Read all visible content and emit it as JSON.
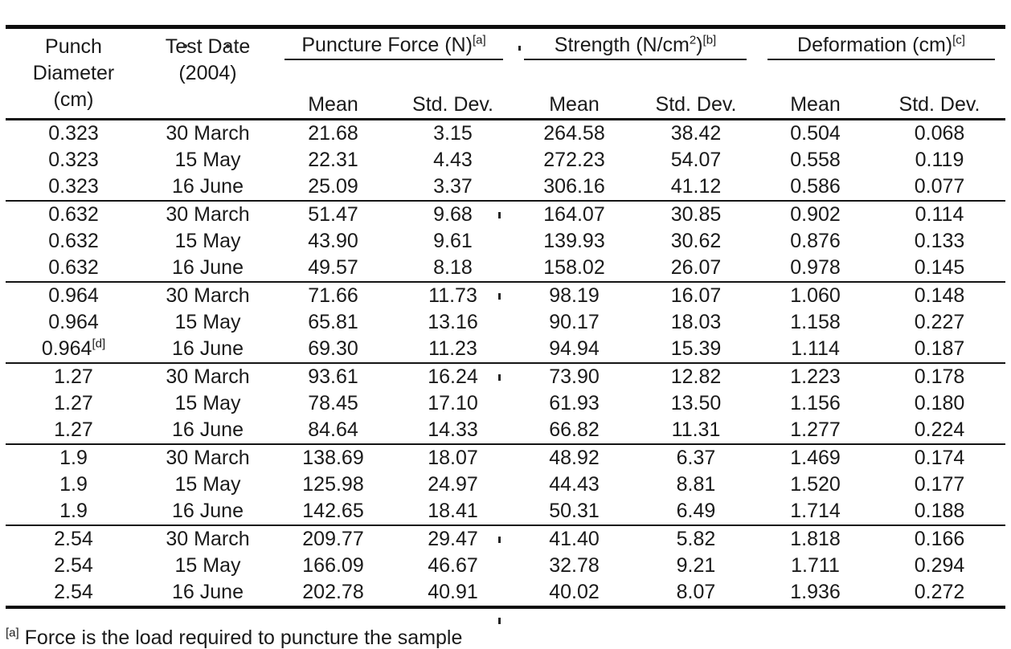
{
  "page": {
    "background": "#ffffff",
    "text_color": "#1a1a1a",
    "rule_color": "#0e0e0e"
  },
  "table": {
    "header": {
      "punch_diameter": "Punch\nDiameter\n(cm)",
      "test_date": "Test Date\n(2004)",
      "groups": [
        {
          "label": "Puncture Force (N)",
          "sup": "[a]"
        },
        {
          "label": "Strength (N/cm",
          "sup2": "2",
          "tail": ")",
          "sup": "[b]"
        },
        {
          "label": "Deformation (cm)",
          "sup": "[c]"
        }
      ],
      "subheaders": {
        "mean": "Mean",
        "std": "Std. Dev."
      }
    },
    "body": [
      {
        "rows": [
          [
            "0.323",
            "30 March",
            "21.68",
            "3.15",
            "264.58",
            "38.42",
            "0.504",
            "0.068"
          ],
          [
            "0.323",
            "15 May",
            "22.31",
            "4.43",
            "272.23",
            "54.07",
            "0.558",
            "0.119"
          ],
          [
            "0.323",
            "16 June",
            "25.09",
            "3.37",
            "306.16",
            "41.12",
            "0.586",
            "0.077"
          ]
        ]
      },
      {
        "rows": [
          [
            "0.632",
            "30 March",
            "51.47",
            "9.68",
            "164.07",
            "30.85",
            "0.902",
            "0.114"
          ],
          [
            "0.632",
            "15 May",
            "43.90",
            "9.61",
            "139.93",
            "30.62",
            "0.876",
            "0.133"
          ],
          [
            "0.632",
            "16 June",
            "49.57",
            "8.18",
            "158.02",
            "26.07",
            "0.978",
            "0.145"
          ]
        ]
      },
      {
        "rows": [
          [
            "0.964",
            "30 March",
            "71.66",
            "11.73",
            "98.19",
            "16.07",
            "1.060",
            "0.148"
          ],
          [
            "0.964",
            "15 May",
            "65.81",
            "13.16",
            "90.17",
            "18.03",
            "1.158",
            "0.227"
          ],
          [
            "0.964[d]",
            "16 June",
            "69.30",
            "11.23",
            "94.94",
            "15.39",
            "1.114",
            "0.187"
          ]
        ]
      },
      {
        "rows": [
          [
            "1.27",
            "30 March",
            "93.61",
            "16.24",
            "73.90",
            "12.82",
            "1.223",
            "0.178"
          ],
          [
            "1.27",
            "15 May",
            "78.45",
            "17.10",
            "61.93",
            "13.50",
            "1.156",
            "0.180"
          ],
          [
            "1.27",
            "16 June",
            "84.64",
            "14.33",
            "66.82",
            "11.31",
            "1.277",
            "0.224"
          ]
        ]
      },
      {
        "rows": [
          [
            "1.9",
            "30 March",
            "138.69",
            "18.07",
            "48.92",
            "6.37",
            "1.469",
            "0.174"
          ],
          [
            "1.9",
            "15 May",
            "125.98",
            "24.97",
            "44.43",
            "8.81",
            "1.520",
            "0.177"
          ],
          [
            "1.9",
            "16 June",
            "142.65",
            "18.41",
            "50.31",
            "6.49",
            "1.714",
            "0.188"
          ]
        ]
      },
      {
        "rows": [
          [
            "2.54",
            "30 March",
            "209.77",
            "29.47",
            "41.40",
            "5.82",
            "1.818",
            "0.166"
          ],
          [
            "2.54",
            "15 May",
            "166.09",
            "46.67",
            "32.78",
            "9.21",
            "1.711",
            "0.294"
          ],
          [
            "2.54",
            "16 June",
            "202.78",
            "40.91",
            "40.02",
            "8.07",
            "1.936",
            "0.272"
          ]
        ]
      }
    ]
  },
  "footnote": {
    "marker": "[a]",
    "text_clipped": "Force is the load required to puncture the sample"
  }
}
